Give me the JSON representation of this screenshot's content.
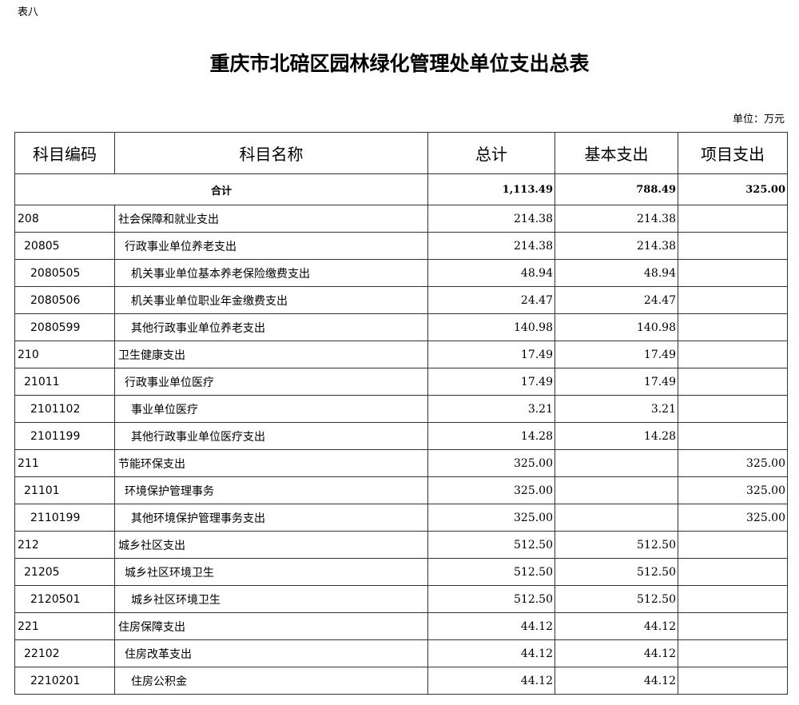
{
  "doc_label": "表八",
  "title": "重庆市北碚区园林绿化管理处单位支出总表",
  "unit": "单位：万元",
  "headers": [
    "科目编码",
    "科目名称",
    "总计",
    "基本支出",
    "项目支出"
  ],
  "total": {
    "label": "合计",
    "total": "1,113.49",
    "basic": "788.49",
    "project": "325.00"
  },
  "rows": [
    {
      "level": 1,
      "code": "208",
      "name": "社会保障和就业支出",
      "total": "214.38",
      "basic": "214.38",
      "project": ""
    },
    {
      "level": 2,
      "code": "20805",
      "name": "行政事业单位养老支出",
      "total": "214.38",
      "basic": "214.38",
      "project": ""
    },
    {
      "level": 3,
      "code": "2080505",
      "name": "机关事业单位基本养老保险缴费支出",
      "total": "48.94",
      "basic": "48.94",
      "project": ""
    },
    {
      "level": 3,
      "code": "2080506",
      "name": "机关事业单位职业年金缴费支出",
      "total": "24.47",
      "basic": "24.47",
      "project": ""
    },
    {
      "level": 3,
      "code": "2080599",
      "name": "其他行政事业单位养老支出",
      "total": "140.98",
      "basic": "140.98",
      "project": ""
    },
    {
      "level": 1,
      "code": "210",
      "name": "卫生健康支出",
      "total": "17.49",
      "basic": "17.49",
      "project": ""
    },
    {
      "level": 2,
      "code": "21011",
      "name": "行政事业单位医疗",
      "total": "17.49",
      "basic": "17.49",
      "project": ""
    },
    {
      "level": 3,
      "code": "2101102",
      "name": "事业单位医疗",
      "total": "3.21",
      "basic": "3.21",
      "project": ""
    },
    {
      "level": 3,
      "code": "2101199",
      "name": "其他行政事业单位医疗支出",
      "total": "14.28",
      "basic": "14.28",
      "project": ""
    },
    {
      "level": 1,
      "code": "211",
      "name": "节能环保支出",
      "total": "325.00",
      "basic": "",
      "project": "325.00"
    },
    {
      "level": 2,
      "code": "21101",
      "name": "环境保护管理事务",
      "total": "325.00",
      "basic": "",
      "project": "325.00"
    },
    {
      "level": 3,
      "code": "2110199",
      "name": "其他环境保护管理事务支出",
      "total": "325.00",
      "basic": "",
      "project": "325.00"
    },
    {
      "level": 1,
      "code": "212",
      "name": "城乡社区支出",
      "total": "512.50",
      "basic": "512.50",
      "project": ""
    },
    {
      "level": 2,
      "code": "21205",
      "name": "城乡社区环境卫生",
      "total": "512.50",
      "basic": "512.50",
      "project": ""
    },
    {
      "level": 3,
      "code": "2120501",
      "name": "城乡社区环境卫生",
      "total": "512.50",
      "basic": "512.50",
      "project": ""
    },
    {
      "level": 1,
      "code": "221",
      "name": "住房保障支出",
      "total": "44.12",
      "basic": "44.12",
      "project": ""
    },
    {
      "level": 2,
      "code": "22102",
      "name": "住房改革支出",
      "total": "44.12",
      "basic": "44.12",
      "project": ""
    },
    {
      "level": 3,
      "code": "2210201",
      "name": "住房公积金",
      "total": "44.12",
      "basic": "44.12",
      "project": ""
    }
  ]
}
